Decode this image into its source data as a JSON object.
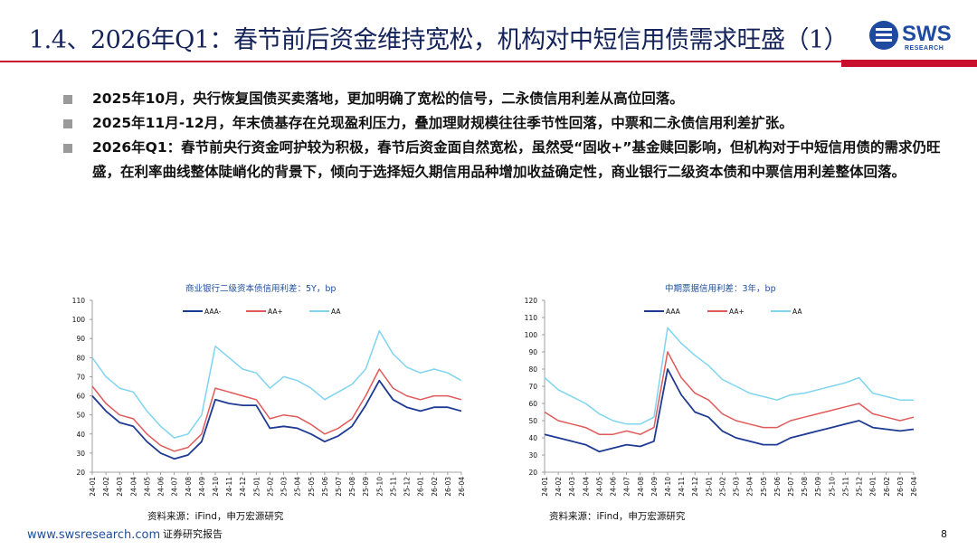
{
  "header": {
    "title": "1.4、2026年Q1：春节前后资金维持宽松，机构对中短信用债需求旺盛（1）",
    "logo": {
      "name": "SWS",
      "sub": "RESEARCH"
    },
    "colors": {
      "title": "#14235a",
      "accent": "#c8102e",
      "brand": "#1e4aa0"
    }
  },
  "bullets": [
    "2025年10月，央行恢复国债买卖落地，更加明确了宽松的信号，二永债信用利差从高位回落。",
    "2025年11月-12月，年末债基存在兑现盈利压力，叠加理财规模往往季节性回落，中票和二永债信用利差扩张。",
    "2026年Q1：春节前央行资金呵护较为积极，春节后资金面自然宽松，虽然受“固收+”基金赎回影响，但机构对于中短信用债的需求仍旺盛，在利率曲线整体陡峭化的背景下，倾向于选择短久期信用品种增加收益确定性，商业银行二级资本债和中票信用利差整体回落。"
  ],
  "chart_data": [
    {
      "type": "line",
      "title": "商业银行二级资本债信用利差：5Y，bp",
      "ylim": [
        20,
        110
      ],
      "yticks": [
        20,
        30,
        40,
        50,
        60,
        70,
        80,
        90,
        100,
        110
      ],
      "x": [
        "24-01",
        "24-02",
        "24-03",
        "24-04",
        "24-05",
        "24-06",
        "24-07",
        "24-08",
        "24-09",
        "24-10",
        "24-11",
        "24-12",
        "25-01",
        "25-02",
        "25-03",
        "25-04",
        "25-05",
        "25-06",
        "25-07",
        "25-08",
        "25-09",
        "25-10",
        "25-11",
        "25-12",
        "26-01",
        "26-02",
        "26-03",
        "26-04"
      ],
      "series": [
        {
          "name": "AAA-",
          "color": "#1f3a93",
          "values": [
            60,
            52,
            46,
            44,
            36,
            30,
            27,
            29,
            36,
            58,
            56,
            55,
            55,
            43,
            44,
            43,
            40,
            36,
            39,
            44,
            55,
            68,
            58,
            54,
            52,
            54,
            54,
            52
          ]
        },
        {
          "name": "AA+",
          "color": "#e05a5a",
          "values": [
            65,
            56,
            50,
            48,
            40,
            34,
            31,
            33,
            40,
            64,
            62,
            60,
            58,
            48,
            50,
            49,
            45,
            40,
            43,
            48,
            60,
            74,
            64,
            60,
            58,
            60,
            60,
            58
          ]
        },
        {
          "name": "AA",
          "color": "#7fd4f0",
          "values": [
            80,
            70,
            64,
            62,
            52,
            44,
            38,
            40,
            50,
            86,
            80,
            74,
            72,
            64,
            70,
            68,
            64,
            58,
            62,
            66,
            74,
            94,
            82,
            75,
            72,
            74,
            72,
            68
          ]
        }
      ],
      "source": "资料来源：iFind，申万宏源研究"
    },
    {
      "type": "line",
      "title": "中期票据信用利差：3年，bp",
      "ylim": [
        20,
        120
      ],
      "yticks": [
        20,
        30,
        40,
        50,
        60,
        70,
        80,
        90,
        100,
        110,
        120
      ],
      "x": [
        "24-01",
        "24-02",
        "24-03",
        "24-04",
        "24-05",
        "24-06",
        "24-07",
        "24-08",
        "24-09",
        "24-10",
        "24-11",
        "24-12",
        "25-01",
        "25-02",
        "25-03",
        "25-04",
        "25-05",
        "25-06",
        "25-07",
        "25-08",
        "25-09",
        "25-10",
        "25-11",
        "25-12",
        "26-01",
        "26-02",
        "26-03",
        "26-04"
      ],
      "series": [
        {
          "name": "AAA",
          "color": "#1f3a93",
          "values": [
            42,
            40,
            38,
            36,
            32,
            34,
            36,
            35,
            38,
            80,
            65,
            55,
            52,
            44,
            40,
            38,
            36,
            36,
            40,
            42,
            44,
            46,
            48,
            50,
            46,
            45,
            44,
            45
          ]
        },
        {
          "name": "AA+",
          "color": "#e05a5a",
          "values": [
            55,
            50,
            48,
            46,
            42,
            42,
            44,
            42,
            46,
            90,
            75,
            66,
            62,
            54,
            50,
            48,
            46,
            46,
            50,
            52,
            54,
            56,
            58,
            60,
            54,
            52,
            50,
            52
          ]
        },
        {
          "name": "AA",
          "color": "#7fd4f0",
          "values": [
            75,
            68,
            64,
            60,
            54,
            50,
            48,
            48,
            52,
            104,
            95,
            88,
            82,
            74,
            70,
            66,
            64,
            62,
            65,
            66,
            68,
            70,
            72,
            75,
            66,
            64,
            62,
            62
          ]
        }
      ],
      "source": "资料来源：iFind，申万宏源研究"
    }
  ],
  "footer": {
    "url": "www.swsresearch.com",
    "label": "证券研究报告",
    "page": "8"
  }
}
